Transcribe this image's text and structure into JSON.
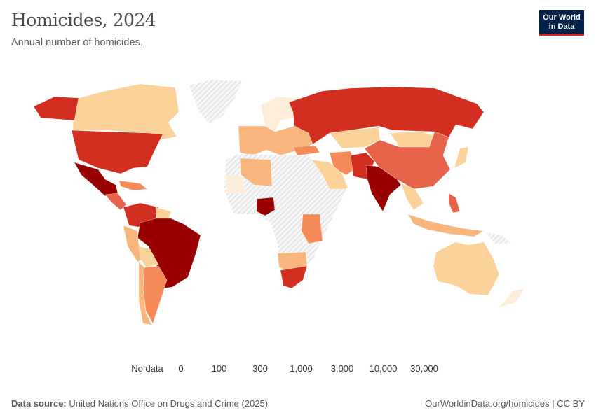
{
  "header": {
    "title": "Homicides, 2024",
    "subtitle": "Annual number of homicides.",
    "logo": "Our World in Data"
  },
  "legend": {
    "no_data_label": "No data",
    "thresholds": [
      "0",
      "100",
      "300",
      "1,000",
      "3,000",
      "10,000",
      "30,000"
    ],
    "colors": [
      "#feeddb",
      "#fbd29a",
      "#f9b57e",
      "#f68b59",
      "#e6634a",
      "#d32f21",
      "#990000"
    ],
    "no_data_color": "#e0e0e0"
  },
  "footer": {
    "source_label": "Data source:",
    "source": "United Nations Office on Drugs and Crime (2025)",
    "license": "OurWorldinData.org/homicides | CC BY"
  }
}
